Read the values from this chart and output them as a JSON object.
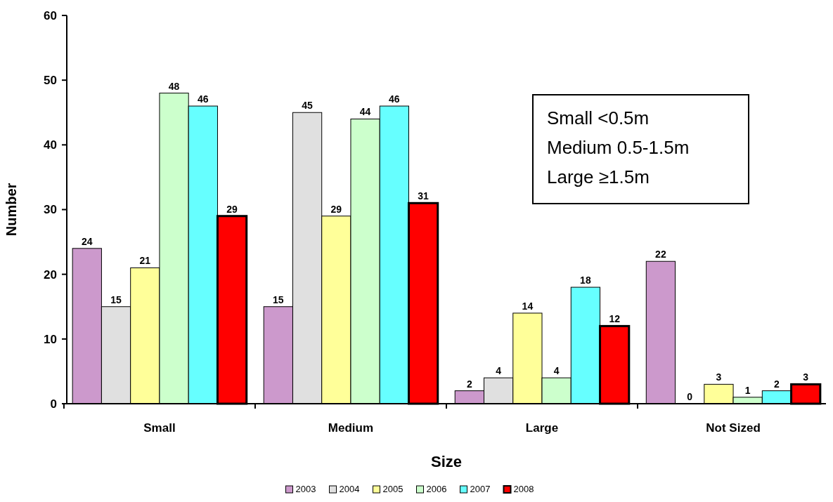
{
  "chart_data": {
    "type": "bar",
    "xlabel": "Size",
    "ylabel": "Number",
    "categories": [
      "Small",
      "Medium",
      "Large",
      "Not Sized"
    ],
    "series": [
      {
        "name": "2003",
        "color": "#cc99cc",
        "values": [
          24,
          15,
          2,
          22
        ]
      },
      {
        "name": "2004",
        "color": "#e0e0e0",
        "values": [
          15,
          45,
          4,
          0
        ]
      },
      {
        "name": "2005",
        "color": "#ffff99",
        "values": [
          21,
          29,
          14,
          3
        ]
      },
      {
        "name": "2006",
        "color": "#ccffcc",
        "values": [
          48,
          44,
          4,
          1
        ]
      },
      {
        "name": "2007",
        "color": "#66ffff",
        "values": [
          46,
          46,
          18,
          2
        ]
      },
      {
        "name": "2008",
        "color": "#ff0000",
        "values": [
          29,
          31,
          12,
          3
        ]
      }
    ],
    "ylim": [
      0,
      60
    ],
    "yticks": [
      0,
      10,
      20,
      30,
      40,
      50,
      60
    ],
    "grid": false,
    "legend": "bottom",
    "data_labels": true,
    "annotations": [
      "Small <0.5m",
      "Medium 0.5-1.5m",
      "Large ≥1.5m"
    ]
  }
}
